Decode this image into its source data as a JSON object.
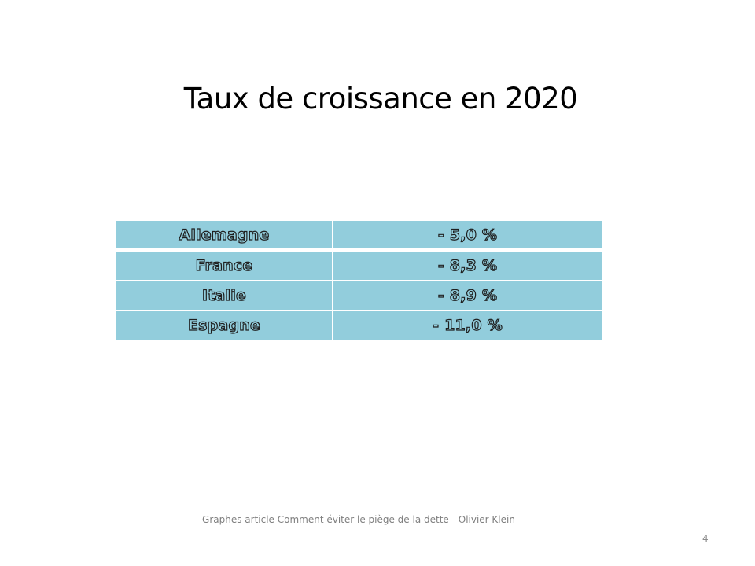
{
  "slide": {
    "title": "Taux de croissance en 2020",
    "footer": "Graphes article Comment  éviter le piège de la dette - Olivier Klein",
    "page_number": "4"
  },
  "table": {
    "rows": [
      {
        "country": "Allemagne",
        "rate": "- 5,0 %"
      },
      {
        "country": "France",
        "rate": "- 8,3 %"
      },
      {
        "country": "Italie",
        "rate": "- 8,9 %"
      },
      {
        "country": "Espagne",
        "rate": "- 11,0 %"
      }
    ]
  },
  "colors": {
    "cell_fill": "#92cddc",
    "text_outline": "#1f1f1f"
  }
}
